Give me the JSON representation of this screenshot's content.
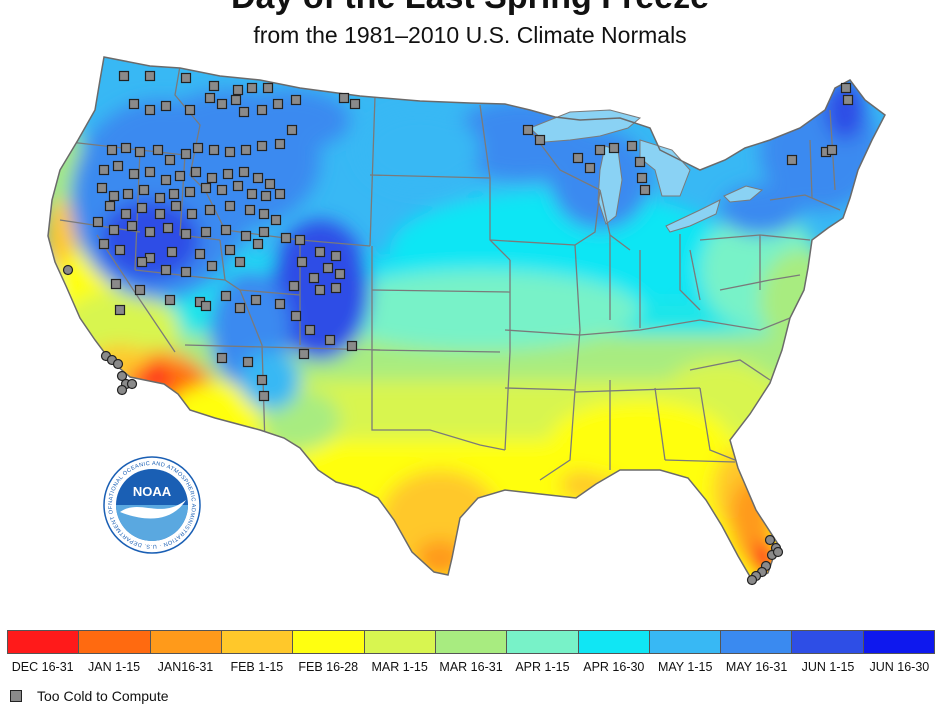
{
  "title": "Day of the Last Spring Freeze",
  "subtitle": "from the 1981–2010 U.S. Climate Normals",
  "logo_text": "NOAA",
  "logo_ring_text": "NATIONAL OCEANIC AND ATMOSPHERIC ADMINISTRATION · U.S. DEPARTMENT OF COMMERCE",
  "legend": [
    {
      "label": "DEC 16-31",
      "color": "#ff1a1a"
    },
    {
      "label": "JAN 1-15",
      "color": "#ff6a10"
    },
    {
      "label": "JAN16-31",
      "color": "#ff9a1a"
    },
    {
      "label": "FEB 1-15",
      "color": "#ffc82a"
    },
    {
      "label": "FEB 16-28",
      "color": "#ffff10"
    },
    {
      "label": "MAR 1-15",
      "color": "#d8f550"
    },
    {
      "label": "MAR 16-31",
      "color": "#a8ec80"
    },
    {
      "label": "APR 1-15",
      "color": "#78f2c8"
    },
    {
      "label": "APR 16-30",
      "color": "#10e6f4"
    },
    {
      "label": "MAY 1-15",
      "color": "#38b8f4"
    },
    {
      "label": "MAY 16-31",
      "color": "#3a8af0"
    },
    {
      "label": "JUN 1-15",
      "color": "#2e4ee6"
    },
    {
      "label": "JUN 16-30",
      "color": "#0e18ee"
    }
  ],
  "too_cold_label": "Too Cold to Compute",
  "colors": {
    "border": "#7a7a7a",
    "marker_fill": "#8a8a8a",
    "marker_stroke": "#222222",
    "lake": "#8ad2f4",
    "noaa_blue": "#1a5fb4"
  }
}
